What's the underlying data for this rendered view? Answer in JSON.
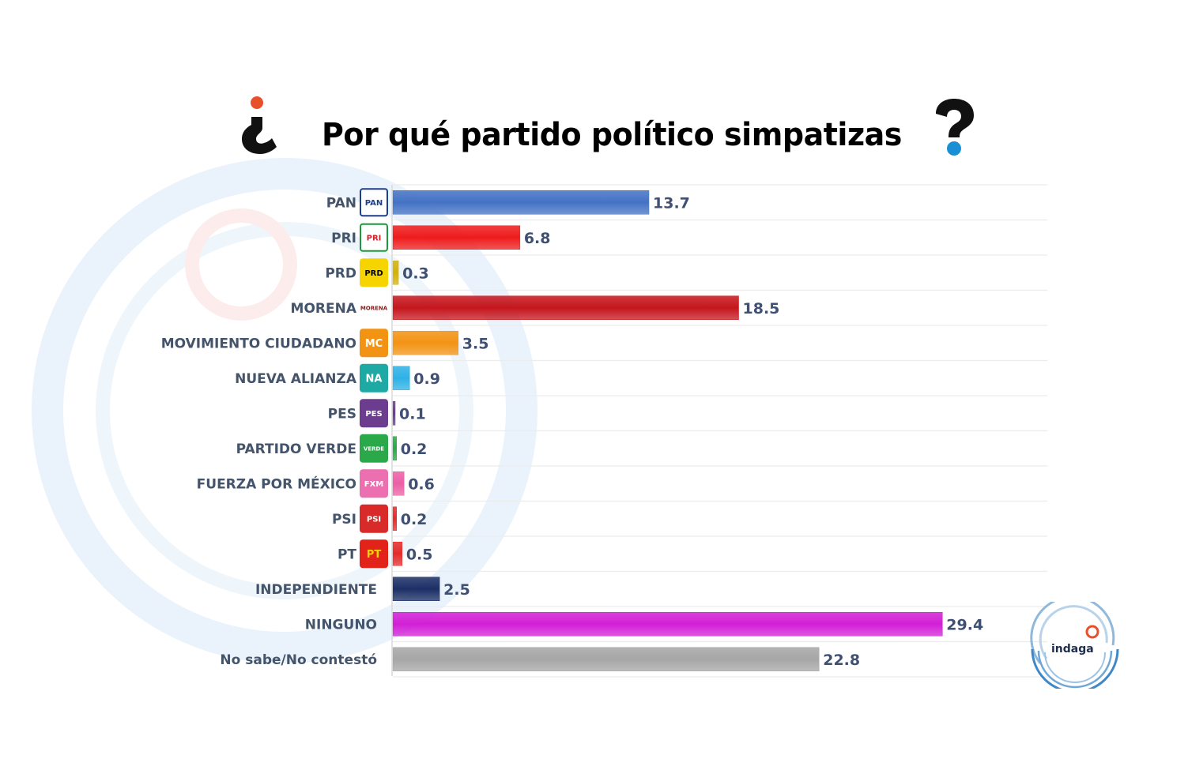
{
  "title": "Por qué partido político simpatizas",
  "brand": {
    "name": "indaga"
  },
  "colors": {
    "title": "#000000",
    "label": "#44546a",
    "value": "#3f5073",
    "accent_orange": "#e8502a",
    "accent_blue": "#1b8fd6"
  },
  "chart_data": {
    "type": "bar",
    "orientation": "horizontal",
    "title": "Por qué partido político simpatizas",
    "xlabel": "",
    "ylabel": "",
    "xlim": [
      0,
      35
    ],
    "grid": true,
    "categories": [
      "PAN",
      "PRI",
      "PRD",
      "MORENA",
      "MOVIMIENTO CIUDADANO",
      "NUEVA ALIANZA",
      "PES",
      "PARTIDO VERDE",
      "FUERZA POR MÉXICO",
      "PSI",
      "PT",
      "INDEPENDIENTE",
      "NINGUNO",
      "No sabe/No contestó"
    ],
    "values": [
      13.7,
      6.8,
      0.3,
      18.5,
      3.5,
      0.9,
      0.1,
      0.2,
      0.6,
      0.2,
      0.5,
      2.5,
      29.4,
      22.8
    ],
    "value_labels": [
      "13.7",
      "6.8",
      "0.3",
      "18.5",
      "3.5",
      "0.9",
      "0.1",
      "0.2",
      "0.6",
      "0.2",
      "0.5",
      "2.5",
      "29.4",
      "22.8"
    ],
    "bar_colors": [
      "#4472c4",
      "#ee1c1c",
      "#d4b106",
      "#c5161d",
      "#f39314",
      "#2eb1e6",
      "#6c3d8f",
      "#2aa84a",
      "#ec5fa6",
      "#e52b2b",
      "#e52b2b",
      "#1c2f66",
      "#d21fd6",
      "#a6a6a6"
    ],
    "logos": [
      {
        "text": "PAN",
        "bg": "#ffffff",
        "fg": "#1d3f8f",
        "border": "#1d3f8f"
      },
      {
        "text": "PRI",
        "bg": "#ffffff",
        "fg": "#d4202a",
        "border": "#1a9a3a"
      },
      {
        "text": "PRD",
        "bg": "#f6d400",
        "fg": "#000000",
        "border": "#f6d400"
      },
      {
        "text": "MORENA",
        "bg": "#ffffff",
        "fg": "#8b1a1a",
        "border": "#ffffff"
      },
      {
        "text": "MC",
        "bg": "#f39314",
        "fg": "#ffffff",
        "border": "#f39314"
      },
      {
        "text": "NA",
        "bg": "#1fa9a4",
        "fg": "#ffffff",
        "border": "#1fa9a4"
      },
      {
        "text": "PES",
        "bg": "#6c3d8f",
        "fg": "#ffffff",
        "border": "#6c3d8f"
      },
      {
        "text": "VERDE",
        "bg": "#2aa84a",
        "fg": "#ffffff",
        "border": "#2aa84a"
      },
      {
        "text": "FXM",
        "bg": "#ec6fb0",
        "fg": "#ffffff",
        "border": "#ec6fb0"
      },
      {
        "text": "PSI",
        "bg": "#d92a2a",
        "fg": "#ffffff",
        "border": "#d92a2a"
      },
      {
        "text": "PT",
        "bg": "#e2231a",
        "fg": "#f6d400",
        "border": "#e2231a"
      },
      null,
      null,
      null
    ]
  }
}
